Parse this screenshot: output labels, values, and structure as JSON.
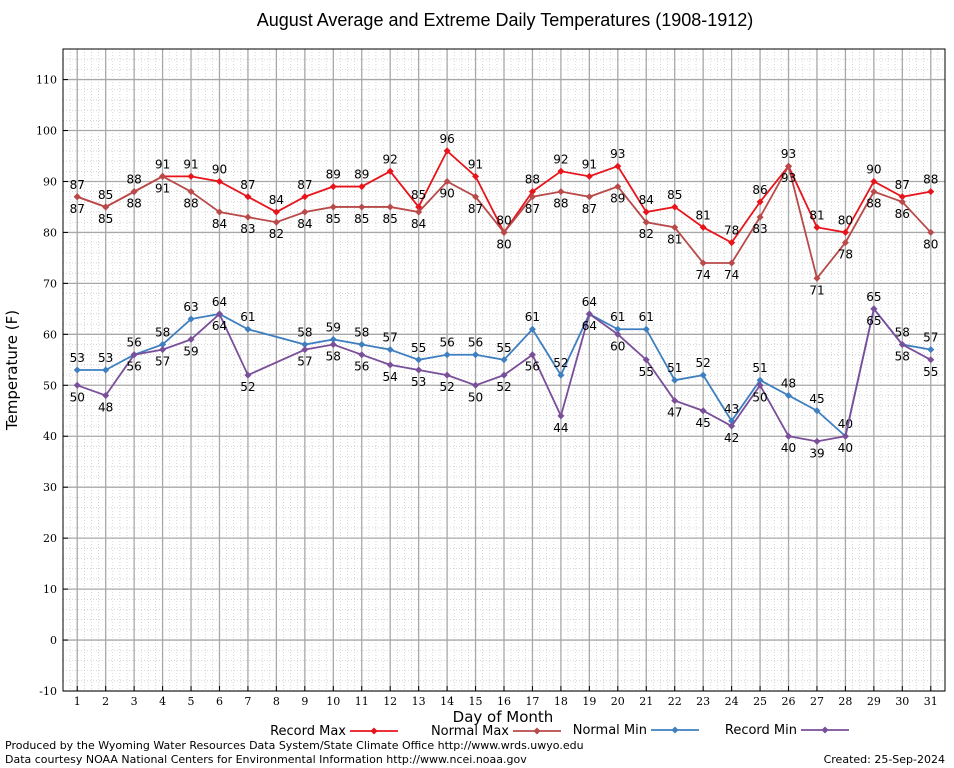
{
  "chart_data": {
    "type": "line",
    "title": "August Average and Extreme Daily Temperatures (1908-1912)",
    "xlabel": "Day of Month",
    "ylabel": "Temperature (F)",
    "x": [
      1,
      2,
      3,
      4,
      5,
      6,
      7,
      8,
      9,
      10,
      11,
      12,
      13,
      14,
      15,
      16,
      17,
      18,
      19,
      20,
      21,
      22,
      23,
      24,
      25,
      26,
      27,
      28,
      29,
      30,
      31
    ],
    "xlim": [
      0.5,
      31.5
    ],
    "ylim": [
      -10,
      116
    ],
    "yticks": [
      -10,
      0,
      10,
      20,
      30,
      40,
      50,
      60,
      70,
      80,
      90,
      100,
      110
    ],
    "grid": true,
    "legend_position": "bottom",
    "series": [
      {
        "name": "Record Max",
        "color": "#e8141c",
        "values": [
          87,
          85,
          88,
          91,
          91,
          90,
          87,
          84,
          87,
          89,
          89,
          92,
          85,
          96,
          91,
          80,
          88,
          92,
          91,
          93,
          84,
          85,
          81,
          78,
          86,
          93,
          81,
          80,
          90,
          87,
          88
        ]
      },
      {
        "name": "Normal Max",
        "color": "#b84a4a",
        "values": [
          87,
          85,
          88,
          91,
          88,
          84,
          83,
          82,
          84,
          85,
          85,
          85,
          84,
          90,
          87,
          80,
          87,
          88,
          87,
          89,
          82,
          81,
          74,
          74,
          83,
          93,
          71,
          78,
          88,
          86,
          80
        ]
      },
      {
        "name": "Normal Min",
        "color": "#3f7fbf",
        "values": [
          53,
          53,
          56,
          58,
          63,
          64,
          61,
          null,
          58,
          59,
          58,
          57,
          55,
          56,
          56,
          55,
          61,
          52,
          64,
          61,
          61,
          51,
          52,
          43,
          51,
          48,
          45,
          40,
          65,
          58,
          57
        ]
      },
      {
        "name": "Record Min",
        "color": "#7a4f9a",
        "values": [
          50,
          48,
          56,
          57,
          59,
          64,
          52,
          null,
          57,
          58,
          56,
          54,
          53,
          52,
          50,
          52,
          56,
          44,
          64,
          60,
          55,
          47,
          45,
          42,
          50,
          40,
          39,
          40,
          65,
          58,
          55
        ]
      }
    ]
  },
  "footer": {
    "line1": "Produced by the Wyoming Water Resources Data System/State Climate Office http://www.wrds.uwyo.edu",
    "line2": "Data courtesy NOAA National Centers for Environmental Information http://www.ncei.noaa.gov",
    "created": "Created:  25-Sep-2024"
  }
}
